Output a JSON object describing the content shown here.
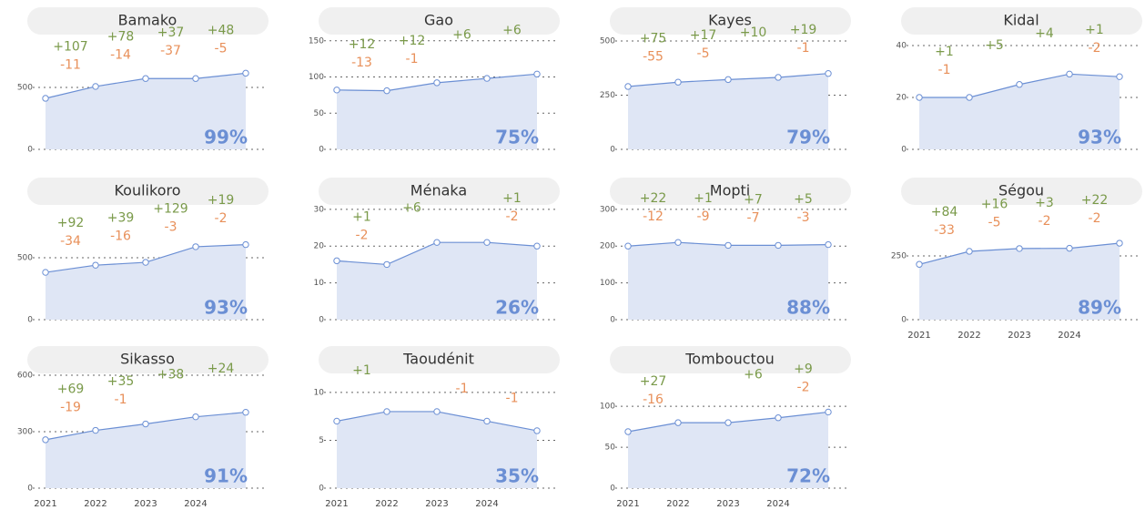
{
  "chart_data": [
    {
      "type": "area",
      "title": "Bamako",
      "values": [
        412,
        508,
        572,
        572,
        615
      ],
      "ylim": [
        0,
        912
      ],
      "yticks": [
        0,
        500
      ],
      "gains": [
        "+107",
        "+78",
        "+37",
        "+48"
      ],
      "losses": [
        "-11",
        "-14",
        "-37",
        "-5"
      ],
      "total_label": "99%"
    },
    {
      "type": "area",
      "title": "Gao",
      "values": [
        82,
        81,
        92,
        98,
        104
      ],
      "ylim": [
        0,
        156
      ],
      "yticks": [
        0,
        50,
        100,
        150
      ],
      "gains": [
        "+12",
        "+12",
        "+6",
        "+6"
      ],
      "losses": [
        "-13",
        "-1",
        null,
        null
      ],
      "total_label": "75%"
    },
    {
      "type": "area",
      "title": "Kayes",
      "values": [
        290,
        310,
        322,
        332,
        350
      ],
      "ylim": [
        0,
        521
      ],
      "yticks": [
        0,
        250,
        500
      ],
      "gains": [
        "+75",
        "+17",
        "+10",
        "+19"
      ],
      "losses": [
        "-55",
        "-5",
        null,
        "-1"
      ],
      "total_label": "79%"
    },
    {
      "type": "area",
      "title": "Kidal",
      "values": [
        20,
        20,
        25,
        29,
        28
      ],
      "ylim": [
        0,
        43.5
      ],
      "yticks": [
        0,
        20,
        40
      ],
      "gains": [
        "+1",
        "+5",
        "+4",
        "+1"
      ],
      "losses": [
        "-1",
        null,
        null,
        "-2"
      ],
      "total_label": "93%"
    },
    {
      "type": "area",
      "title": "Koulikoro",
      "values": [
        382,
        440,
        463,
        589,
        606
      ],
      "ylim": [
        0,
        912
      ],
      "yticks": [
        0,
        500
      ],
      "gains": [
        "+92",
        "+39",
        "+129",
        "+19"
      ],
      "losses": [
        "-34",
        "-16",
        "-3",
        "-2"
      ],
      "total_label": "93%"
    },
    {
      "type": "area",
      "title": "Ménaka",
      "values": [
        16,
        15,
        21,
        21,
        20
      ],
      "ylim": [
        0,
        30.7
      ],
      "yticks": [
        0,
        10,
        20,
        30
      ],
      "gains": [
        "+1",
        "+6",
        null,
        "+1"
      ],
      "losses": [
        "-2",
        null,
        null,
        "-2"
      ],
      "total_label": "26%"
    },
    {
      "type": "area",
      "title": "Mopti",
      "values": [
        200,
        210,
        202,
        202,
        204
      ],
      "ylim": [
        0,
        307
      ],
      "yticks": [
        0,
        100,
        200,
        300
      ],
      "gains": [
        "+22",
        "+1",
        "+7",
        "+5"
      ],
      "losses": [
        "-12",
        "-9",
        "-7",
        "-3"
      ],
      "total_label": "88%"
    },
    {
      "type": "area",
      "title": "Ségou",
      "values": [
        217,
        268,
        279,
        280,
        300
      ],
      "ylim": [
        0,
        443
      ],
      "yticks": [
        0,
        250
      ],
      "gains": [
        "+84",
        "+16",
        "+3",
        "+22"
      ],
      "losses": [
        "-33",
        "-5",
        "-2",
        "-2"
      ],
      "total_label": "89%",
      "categories": [
        "2021",
        "2022",
        "2023",
        "2024",
        null
      ]
    },
    {
      "type": "area",
      "title": "Sikasso",
      "values": [
        257,
        307,
        341,
        379,
        403
      ],
      "ylim": [
        0,
        600
      ],
      "yticks": [
        0,
        300,
        600
      ],
      "gains": [
        "+69",
        "+35",
        "+38",
        "+24"
      ],
      "losses": [
        "-19",
        "-1",
        null,
        null
      ],
      "total_label": "91%",
      "categories": [
        "2021",
        "2022",
        "2023",
        "2024",
        null
      ]
    },
    {
      "type": "area",
      "title": "Taoudénit",
      "values": [
        7,
        8,
        8,
        7,
        6
      ],
      "ylim": [
        0,
        11.8
      ],
      "yticks": [
        0,
        5,
        10
      ],
      "gains": [
        "+1",
        null,
        null,
        null
      ],
      "losses": [
        null,
        null,
        "-1",
        "-1"
      ],
      "total_label": "35%",
      "categories": [
        "2021",
        "2022",
        "2023",
        "2024",
        null
      ]
    },
    {
      "type": "area",
      "title": "Tombouctou",
      "values": [
        69,
        80,
        80,
        86,
        93
      ],
      "ylim": [
        0,
        138
      ],
      "yticks": [
        0,
        50,
        100
      ],
      "gains": [
        "+27",
        null,
        "+6",
        "+9"
      ],
      "losses": [
        "-16",
        null,
        null,
        "-2"
      ],
      "total_label": "72%",
      "categories": [
        "2021",
        "2022",
        "2023",
        "2024",
        null
      ]
    }
  ]
}
